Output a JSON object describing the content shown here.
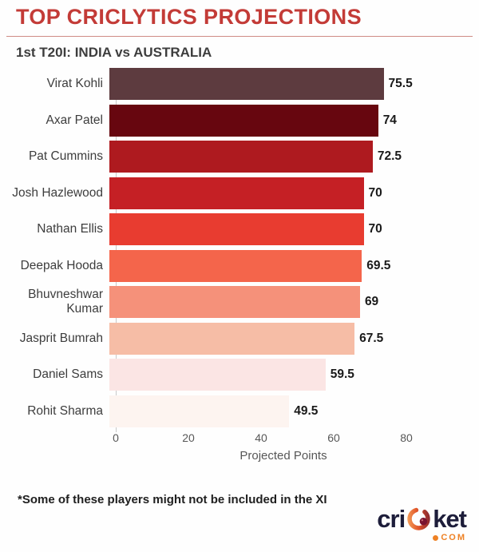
{
  "header": {
    "title": "TOP CRICLYTICS PROJECTIONS",
    "subtitle": "1st T20I: INDIA vs AUSTRALIA"
  },
  "chart_data": {
    "type": "bar",
    "orientation": "horizontal",
    "title": "TOP CRICLYTICS PROJECTIONS",
    "subtitle": "1st T20I: INDIA vs AUSTRALIA",
    "categories": [
      "Virat Kohli",
      "Axar Patel",
      "Pat Cummins",
      "Josh Hazlewood",
      "Nathan Ellis",
      "Deepak Hooda",
      "Bhuvneshwar Kumar",
      "Jasprit Bumrah",
      "Daniel Sams",
      "Rohit Sharma"
    ],
    "values": [
      75.5,
      74,
      72.5,
      70,
      70,
      69.5,
      69,
      67.5,
      59.5,
      49.5
    ],
    "value_labels": [
      "75.5",
      "74",
      "72.5",
      "70",
      "70",
      "69.5",
      "69",
      "67.5",
      "59.5",
      "49.5"
    ],
    "bar_colors": [
      "#5d3b3f",
      "#67060f",
      "#ae1a1f",
      "#c52025",
      "#e83c30",
      "#f4654b",
      "#f5917a",
      "#f6bda6",
      "#fbe5e4",
      "#fdf4f0"
    ],
    "xlabel": "Projected Points",
    "xticks": [
      0,
      20,
      40,
      60,
      80
    ],
    "xlim": [
      0,
      80
    ],
    "grid": false,
    "legend": false
  },
  "footer": {
    "note": "*Some of these players might not be included in the XI"
  },
  "logo": {
    "prefix": "cri",
    "suffix": "ket",
    "tld": "COM",
    "accent_color": "#ee8124",
    "text_color": "#1d1d3a"
  },
  "colors": {
    "title": "#c33b37",
    "divider": "#cf8b85",
    "axis_text": "#575757",
    "label_text": "#3d3d3d",
    "value_text": "#1a1a1a",
    "background": "#fefefe"
  }
}
